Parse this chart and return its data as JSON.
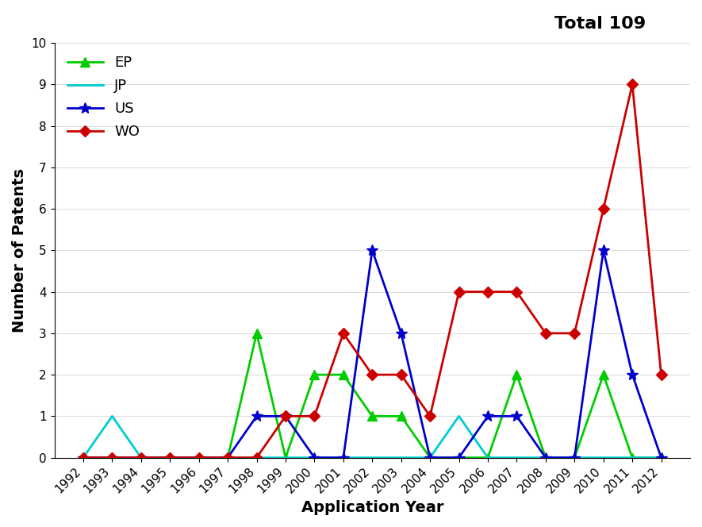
{
  "years": [
    1992,
    1993,
    1994,
    1995,
    1996,
    1997,
    1998,
    1999,
    2000,
    2001,
    2002,
    2003,
    2004,
    2005,
    2006,
    2007,
    2008,
    2009,
    2010,
    2011,
    2012
  ],
  "EP": [
    0,
    0,
    0,
    0,
    0,
    0,
    3,
    0,
    2,
    2,
    1,
    1,
    0,
    0,
    0,
    2,
    0,
    0,
    2,
    0,
    0
  ],
  "JP": [
    0,
    1,
    0,
    0,
    0,
    0,
    0,
    0,
    0,
    0,
    0,
    0,
    0,
    1,
    0,
    0,
    0,
    0,
    0,
    0,
    0
  ],
  "US": [
    0,
    0,
    0,
    0,
    0,
    0,
    1,
    1,
    0,
    0,
    5,
    3,
    0,
    0,
    1,
    1,
    0,
    0,
    5,
    2,
    0
  ],
  "WO": [
    0,
    0,
    0,
    0,
    0,
    0,
    0,
    1,
    1,
    3,
    2,
    2,
    1,
    4,
    4,
    4,
    3,
    3,
    6,
    9,
    2
  ],
  "EP_color": "#00cc00",
  "JP_color": "#00cccc",
  "US_color": "#0000cc",
  "WO_color": "#cc0000",
  "EP_marker": "^",
  "JP_marker": "None",
  "US_marker": "*",
  "WO_marker": "D",
  "title_text": "Total 109",
  "xlabel": "Application Year",
  "ylabel": "Number of Patents",
  "ylim": [
    0,
    10
  ],
  "yticks": [
    0,
    1,
    2,
    3,
    4,
    5,
    6,
    7,
    8,
    9,
    10
  ],
  "title_fontsize": 16,
  "label_fontsize": 14,
  "tick_fontsize": 11,
  "legend_fontsize": 13,
  "linewidth": 2.0,
  "markersize_ep": 8,
  "markersize_us": 10,
  "markersize_wo": 7
}
